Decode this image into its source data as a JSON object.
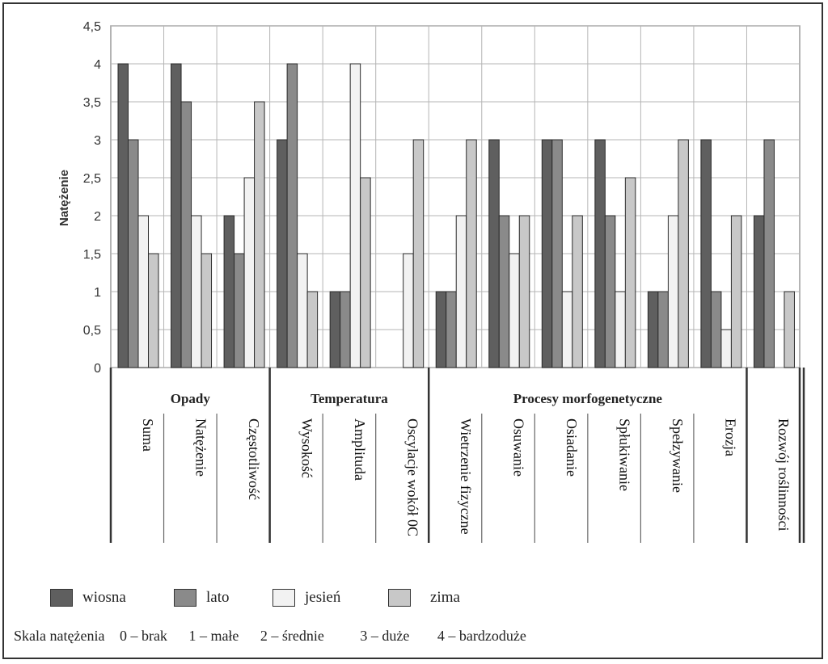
{
  "chart_data": {
    "type": "bar",
    "ylabel": "Natężenie",
    "ylim": [
      0,
      4.5
    ],
    "yticks": [
      "0",
      "0,5",
      "1",
      "1,5",
      "2",
      "2,5",
      "3",
      "3,5",
      "4",
      "4,5"
    ],
    "groups": [
      {
        "label": "Opady",
        "categories": [
          "Suma",
          "Natężenie",
          "Częstotliwość"
        ]
      },
      {
        "label": "Temperatura",
        "categories": [
          "Wysokość",
          "Amplituda",
          "Oscylacje wokół 0C"
        ]
      },
      {
        "label": "Procesy morfogenetyczne",
        "categories": [
          "Wietrzenie fizyczne",
          "Osuwanie",
          "Osiadanie",
          "Spłukiwanie",
          "Spełzywanie",
          "Erozja"
        ]
      },
      {
        "label": "",
        "categories": [
          "Rozwój roślinności"
        ]
      }
    ],
    "categories": [
      "Suma",
      "Natężenie",
      "Częstotliwość",
      "Wysokość",
      "Amplituda",
      "Oscylacje wokół 0C",
      "Wietrzenie fizyczne",
      "Osuwanie",
      "Osiadanie",
      "Spłukiwanie",
      "Spełzywanie",
      "Erozja",
      "Rozwój roślinności"
    ],
    "series": [
      {
        "name": "wiosna",
        "color": "#5f5f5f",
        "values": [
          4,
          4,
          2,
          3,
          1,
          0,
          1,
          3,
          3,
          3,
          1,
          3,
          2
        ]
      },
      {
        "name": "lato",
        "color": "#8a8a8a",
        "values": [
          3,
          3.5,
          1.5,
          4,
          1,
          0,
          1,
          2,
          3,
          2,
          1,
          1,
          3
        ]
      },
      {
        "name": "jesień",
        "color": "#f2f2f2",
        "values": [
          2,
          2,
          2.5,
          1.5,
          4,
          1.5,
          2,
          1.5,
          1,
          1,
          2,
          0.5,
          0
        ]
      },
      {
        "name": "zima",
        "color": "#c8c8c8",
        "values": [
          1.5,
          1.5,
          3.5,
          1,
          2.5,
          3,
          3,
          2,
          2,
          2.5,
          3,
          2,
          1
        ]
      }
    ],
    "grid": true,
    "legend_position": "bottom"
  },
  "legend": {
    "wiosna": "wiosna",
    "lato": "lato",
    "jesien": "jesień",
    "zima": "zima"
  },
  "scale": {
    "title": "Skala natężenia",
    "items": [
      "0 – brak",
      "1 – małe",
      "2 – średnie",
      "3 – duże",
      "4 – bardzoduże"
    ]
  }
}
